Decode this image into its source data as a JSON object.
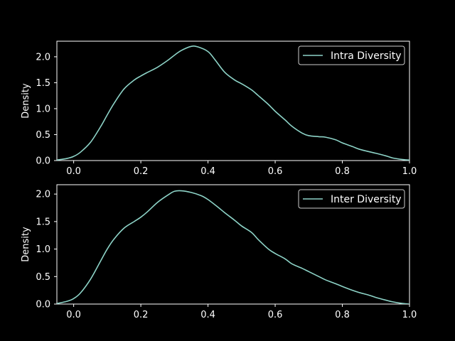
{
  "chart_data": [
    {
      "type": "line",
      "ylabel": "Density",
      "xlabel": "",
      "xlim": [
        -0.05,
        1.0
      ],
      "ylim": [
        0,
        2.3
      ],
      "x_ticks": [
        "0.0",
        "0.2",
        "0.4",
        "0.6",
        "0.8",
        "1.0"
      ],
      "y_ticks": [
        "0.0",
        "0.5",
        "1.0",
        "1.5",
        "2.0"
      ],
      "legend_position": "top-right",
      "grid": false,
      "series": [
        {
          "name": "Intra Diversity",
          "color": "#8dd3c7",
          "x": [
            -0.05,
            -0.02,
            0.0,
            0.02,
            0.05,
            0.08,
            0.1,
            0.12,
            0.15,
            0.18,
            0.2,
            0.22,
            0.25,
            0.28,
            0.3,
            0.32,
            0.35,
            0.37,
            0.4,
            0.42,
            0.45,
            0.48,
            0.5,
            0.53,
            0.55,
            0.58,
            0.6,
            0.63,
            0.65,
            0.68,
            0.7,
            0.73,
            0.75,
            0.78,
            0.8,
            0.83,
            0.85,
            0.88,
            0.9,
            0.93,
            0.95,
            0.98,
            1.0
          ],
          "y": [
            0.01,
            0.04,
            0.08,
            0.16,
            0.35,
            0.65,
            0.88,
            1.1,
            1.38,
            1.55,
            1.63,
            1.7,
            1.8,
            1.93,
            2.03,
            2.12,
            2.2,
            2.19,
            2.1,
            1.95,
            1.7,
            1.55,
            1.48,
            1.36,
            1.25,
            1.08,
            0.95,
            0.78,
            0.66,
            0.53,
            0.48,
            0.46,
            0.45,
            0.4,
            0.34,
            0.27,
            0.22,
            0.17,
            0.14,
            0.09,
            0.05,
            0.02,
            0.01
          ]
        }
      ]
    },
    {
      "type": "line",
      "ylabel": "Density",
      "xlabel": "",
      "xlim": [
        -0.05,
        1.0
      ],
      "ylim": [
        0,
        2.17
      ],
      "x_ticks": [
        "0.0",
        "0.2",
        "0.4",
        "0.6",
        "0.8",
        "1.0"
      ],
      "y_ticks": [
        "0.0",
        "0.5",
        "1.0",
        "1.5",
        "2.0"
      ],
      "legend_position": "top-right",
      "grid": false,
      "series": [
        {
          "name": "Inter Diversity",
          "color": "#8dd3c7",
          "x": [
            -0.05,
            -0.02,
            0.0,
            0.02,
            0.05,
            0.08,
            0.1,
            0.12,
            0.15,
            0.18,
            0.2,
            0.22,
            0.25,
            0.28,
            0.3,
            0.32,
            0.35,
            0.38,
            0.4,
            0.43,
            0.45,
            0.48,
            0.5,
            0.53,
            0.55,
            0.58,
            0.6,
            0.63,
            0.65,
            0.68,
            0.7,
            0.73,
            0.75,
            0.78,
            0.8,
            0.83,
            0.85,
            0.88,
            0.9,
            0.93,
            0.95,
            0.98,
            1.0
          ],
          "y": [
            0.01,
            0.05,
            0.1,
            0.2,
            0.45,
            0.78,
            1.0,
            1.18,
            1.38,
            1.5,
            1.58,
            1.68,
            1.85,
            1.98,
            2.05,
            2.06,
            2.03,
            1.97,
            1.9,
            1.76,
            1.66,
            1.52,
            1.42,
            1.3,
            1.17,
            1.0,
            0.92,
            0.82,
            0.73,
            0.65,
            0.59,
            0.5,
            0.44,
            0.37,
            0.32,
            0.25,
            0.21,
            0.16,
            0.12,
            0.07,
            0.04,
            0.01,
            0.0
          ]
        }
      ]
    }
  ]
}
